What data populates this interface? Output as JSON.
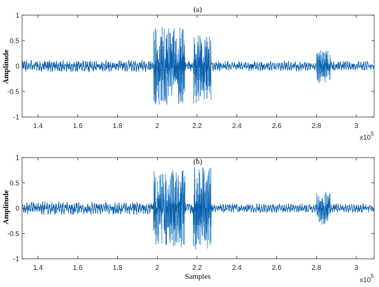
{
  "chart_data": [
    {
      "type": "line",
      "title": "(a)",
      "ylabel": "Amplitude",
      "xlabel": "",
      "xlim": [
        132000,
        309000
      ],
      "ylim": [
        -1,
        1
      ],
      "x_ticks": [
        140000,
        160000,
        180000,
        200000,
        220000,
        240000,
        260000,
        280000,
        300000
      ],
      "x_tick_labels": [
        "1.4",
        "1.6",
        "1.8",
        "2",
        "2.2",
        "2.4",
        "2.6",
        "2.8",
        "3"
      ],
      "y_ticks": [
        -1,
        -0.5,
        0,
        0.5,
        1
      ],
      "y_tick_labels": [
        "-1",
        "-0.5",
        "0",
        "0.5",
        "1"
      ],
      "x_exponent_label": "x10",
      "x_exponent_power": "5",
      "series": [
        {
          "color_dark": "#0a5ea8",
          "color_light": "#5a9fd8",
          "segments": [
            {
              "x_start": 132000,
              "x_end": 198000,
              "amplitude": 0.12
            },
            {
              "x_start": 198000,
              "x_end": 214000,
              "amplitude": 0.78
            },
            {
              "x_start": 214000,
              "x_end": 218000,
              "amplitude": 0.12
            },
            {
              "x_start": 218000,
              "x_end": 227000,
              "amplitude": 0.8
            },
            {
              "x_start": 227000,
              "x_end": 280000,
              "amplitude": 0.1
            },
            {
              "x_start": 280000,
              "x_end": 287000,
              "amplitude": 0.34
            },
            {
              "x_start": 287000,
              "x_end": 309000,
              "amplitude": 0.1
            }
          ]
        }
      ]
    },
    {
      "type": "line",
      "title": "(b)",
      "ylabel": "Amplitude",
      "xlabel": "Samples",
      "xlim": [
        132000,
        309000
      ],
      "ylim": [
        -1,
        1
      ],
      "x_ticks": [
        140000,
        160000,
        180000,
        200000,
        220000,
        240000,
        260000,
        280000,
        300000
      ],
      "x_tick_labels": [
        "1.4",
        "1.6",
        "1.8",
        "2",
        "2.2",
        "2.4",
        "2.6",
        "2.8",
        "3"
      ],
      "y_ticks": [
        -1,
        -0.5,
        0,
        0.5,
        1
      ],
      "y_tick_labels": [
        "-1",
        "-0.5",
        "0",
        "0.5",
        "1"
      ],
      "x_exponent_label": "x10",
      "x_exponent_power": "5",
      "series": [
        {
          "color_dark": "#0a5ea8",
          "color_light": "#5a9fd8",
          "segments": [
            {
              "x_start": 132000,
              "x_end": 198000,
              "amplitude": 0.13
            },
            {
              "x_start": 198000,
              "x_end": 214000,
              "amplitude": 0.78
            },
            {
              "x_start": 214000,
              "x_end": 218000,
              "amplitude": 0.12
            },
            {
              "x_start": 218000,
              "x_end": 227000,
              "amplitude": 0.82
            },
            {
              "x_start": 227000,
              "x_end": 280000,
              "amplitude": 0.09
            },
            {
              "x_start": 280000,
              "x_end": 287000,
              "amplitude": 0.33
            },
            {
              "x_start": 287000,
              "x_end": 309000,
              "amplitude": 0.09
            }
          ]
        }
      ]
    }
  ]
}
